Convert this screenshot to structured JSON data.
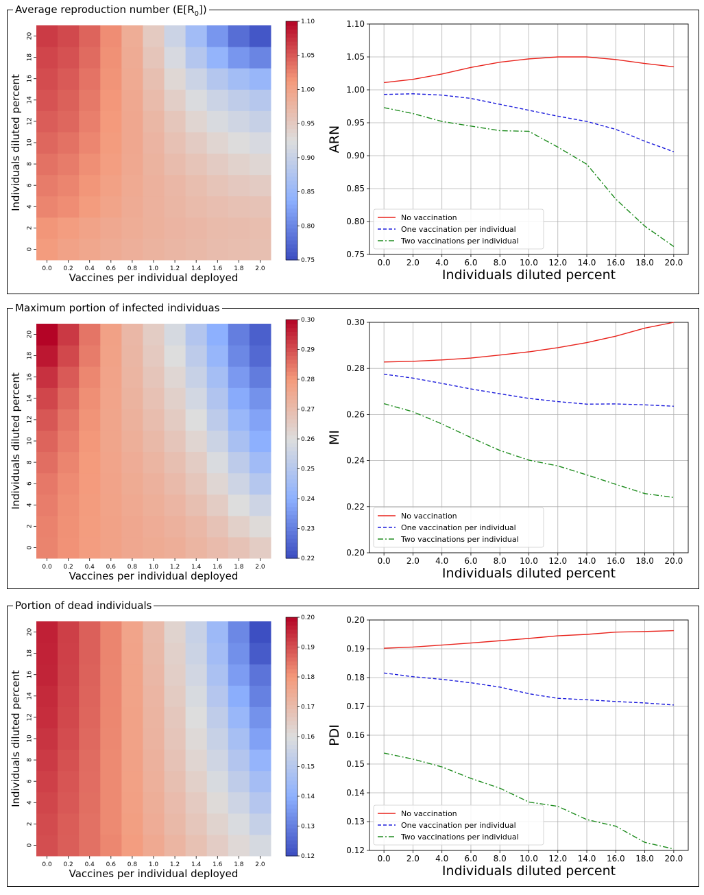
{
  "panels": [
    {
      "title": "Average reproduction number (E[R",
      "title_sub": "0",
      "title_end": "])",
      "heatmap": {
        "xlabel": "Vaccines per individual deployed",
        "ylabel": "Individuals diluted percent",
        "x_ticks": [
          "0.0",
          "0.2",
          "0.4",
          "0.6",
          "0.8",
          "1.0",
          "1.2",
          "1.4",
          "1.6",
          "1.8",
          "2.0"
        ],
        "y_ticks": [
          "0",
          "2",
          "4",
          "6",
          "8",
          "10",
          "12",
          "14",
          "16",
          "18",
          "20"
        ],
        "vmin": 0.75,
        "vmax": 1.1,
        "colorbar_ticks": [
          "0.75",
          "0.80",
          "0.85",
          "0.90",
          "0.95",
          "1.00",
          "1.05",
          "1.10"
        ],
        "colorbar_values": [
          0.75,
          0.8,
          0.85,
          0.9,
          0.95,
          1.0,
          1.05,
          1.1
        ]
      },
      "line_chart": {
        "ylabel": "ARN",
        "xlabel": "Individuals diluted percent",
        "x_ticks": [
          "0.0",
          "2.0",
          "4.0",
          "6.0",
          "8.0",
          "10.0",
          "12.0",
          "14.0",
          "16.0",
          "18.0",
          "20.0"
        ],
        "y_ticks": [
          "0.75",
          "0.80",
          "0.85",
          "0.90",
          "0.95",
          "1.00",
          "1.05",
          "1.10"
        ],
        "ylim": [
          0.75,
          1.1
        ]
      }
    },
    {
      "title": "Maximum portion of infected individuas",
      "title_sub": "",
      "title_end": "",
      "heatmap": {
        "xlabel": "Vaccines per individual deployed",
        "ylabel": "Individuals diluted percent",
        "x_ticks": [
          "0.0",
          "0.2",
          "0.4",
          "0.6",
          "0.8",
          "1.0",
          "1.2",
          "1.4",
          "1.6",
          "1.8",
          "2.0"
        ],
        "y_ticks": [
          "0",
          "2",
          "4",
          "6",
          "8",
          "10",
          "12",
          "14",
          "16",
          "18",
          "20"
        ],
        "vmin": 0.22,
        "vmax": 0.3,
        "colorbar_ticks": [
          "0.22",
          "0.23",
          "0.24",
          "0.25",
          "0.26",
          "0.27",
          "0.28",
          "0.29",
          "0.30"
        ],
        "colorbar_values": [
          0.22,
          0.23,
          0.24,
          0.25,
          0.26,
          0.27,
          0.28,
          0.29,
          0.3
        ]
      },
      "line_chart": {
        "ylabel": "MI",
        "xlabel": "Individuals diluted percent",
        "x_ticks": [
          "0.0",
          "2.0",
          "4.0",
          "6.0",
          "8.0",
          "10.0",
          "12.0",
          "14.0",
          "16.0",
          "18.0",
          "20.0"
        ],
        "y_ticks": [
          "0.20",
          "0.22",
          "0.24",
          "0.26",
          "0.28",
          "0.30"
        ],
        "ylim": [
          0.2,
          0.3
        ]
      }
    },
    {
      "title": "Portion of dead individuals",
      "title_sub": "",
      "title_end": "",
      "heatmap": {
        "xlabel": "Vaccines per individual deployed",
        "ylabel": "Individuals diluted percent",
        "x_ticks": [
          "0.0",
          "0.2",
          "0.4",
          "0.6",
          "0.8",
          "1.0",
          "1.2",
          "1.4",
          "1.6",
          "1.8",
          "2.0"
        ],
        "y_ticks": [
          "0",
          "2",
          "4",
          "6",
          "8",
          "10",
          "12",
          "14",
          "16",
          "18",
          "20"
        ],
        "vmin": 0.12,
        "vmax": 0.2,
        "colorbar_ticks": [
          "0.12",
          "0.13",
          "0.14",
          "0.15",
          "0.16",
          "0.17",
          "0.18",
          "0.19",
          "0.20"
        ],
        "colorbar_values": [
          0.12,
          0.13,
          0.14,
          0.15,
          0.16,
          0.17,
          0.18,
          0.19,
          0.2
        ]
      },
      "line_chart": {
        "ylabel": "PDI",
        "xlabel": "Individuals diluted percent",
        "x_ticks": [
          "0.0",
          "2.0",
          "4.0",
          "6.0",
          "8.0",
          "10.0",
          "12.0",
          "14.0",
          "16.0",
          "18.0",
          "20.0"
        ],
        "y_ticks": [
          "0.12",
          "0.13",
          "0.14",
          "0.15",
          "0.16",
          "0.17",
          "0.18",
          "0.19",
          "0.20"
        ],
        "ylim": [
          0.12,
          0.2
        ]
      }
    }
  ],
  "legend": {
    "entries": [
      "No vaccination",
      "One vaccination per individual",
      "Two vaccinations per individual"
    ],
    "colors": [
      "#e8221b",
      "#1a1adb",
      "#1e8c1e"
    ]
  },
  "colors": {
    "cool": "#3b4cc0",
    "mid": "#dddddd",
    "warm": "#b40426"
  },
  "chart_data": [
    {
      "type": "heatmap",
      "title": "Average reproduction number (E[R0])",
      "xlabel": "Vaccines per individual deployed",
      "ylabel": "Individuals diluted percent",
      "x": [
        0.0,
        0.2,
        0.4,
        0.6,
        0.8,
        1.0,
        1.2,
        1.4,
        1.6,
        1.8,
        2.0
      ],
      "y": [
        0,
        2,
        4,
        6,
        8,
        10,
        12,
        14,
        16,
        18,
        20
      ],
      "values": [
        [
          1.01,
          1.002,
          0.996,
          0.99,
          0.985,
          0.98,
          0.976,
          0.972,
          0.968,
          0.966,
          0.964
        ],
        [
          1.015,
          1.008,
          1.001,
          0.994,
          0.988,
          0.983,
          0.978,
          0.974,
          0.97,
          0.968,
          0.966
        ],
        [
          1.025,
          1.02,
          1.01,
          1.0,
          0.99,
          0.982,
          0.976,
          0.97,
          0.965,
          0.962,
          0.96
        ],
        [
          1.03,
          1.025,
          1.015,
          1.004,
          0.992,
          0.982,
          0.974,
          0.966,
          0.958,
          0.952,
          0.948
        ],
        [
          1.036,
          1.03,
          1.019,
          1.007,
          0.994,
          0.98,
          0.968,
          0.958,
          0.948,
          0.94,
          0.934
        ],
        [
          1.042,
          1.036,
          1.024,
          1.01,
          0.995,
          0.978,
          0.962,
          0.948,
          0.936,
          0.926,
          0.918
        ],
        [
          1.048,
          1.042,
          1.028,
          1.012,
          0.995,
          0.975,
          0.955,
          0.936,
          0.92,
          0.91,
          0.9
        ],
        [
          1.054,
          1.046,
          1.032,
          1.014,
          0.994,
          0.97,
          0.945,
          0.922,
          0.905,
          0.892,
          0.882
        ],
        [
          1.058,
          1.05,
          1.035,
          1.016,
          0.992,
          0.964,
          0.933,
          0.905,
          0.88,
          0.862,
          0.85
        ],
        [
          1.062,
          1.055,
          1.04,
          1.018,
          0.99,
          0.956,
          0.918,
          0.88,
          0.845,
          0.815,
          0.8
        ],
        [
          1.068,
          1.06,
          1.044,
          1.02,
          0.988,
          0.95,
          0.905,
          0.86,
          0.815,
          0.78,
          0.76
        ]
      ],
      "vmin": 0.75,
      "vmax": 1.1
    },
    {
      "type": "line",
      "ylabel": "ARN",
      "xlabel": "Individuals diluted percent",
      "x": [
        0,
        2,
        4,
        6,
        8,
        10,
        12,
        14,
        16,
        18,
        20
      ],
      "series": [
        {
          "name": "No vaccination",
          "values": [
            1.011,
            1.016,
            1.024,
            1.034,
            1.042,
            1.047,
            1.05,
            1.05,
            1.046,
            1.04,
            1.035
          ]
        },
        {
          "name": "One vaccination per individual",
          "values": [
            0.993,
            0.994,
            0.992,
            0.987,
            0.978,
            0.969,
            0.96,
            0.952,
            0.94,
            0.922,
            0.906
          ]
        },
        {
          "name": "Two vaccinations per individual",
          "values": [
            0.973,
            0.964,
            0.952,
            0.945,
            0.938,
            0.937,
            0.913,
            0.887,
            0.834,
            0.793,
            0.762
          ]
        }
      ],
      "ylim": [
        0.75,
        1.1
      ]
    },
    {
      "type": "heatmap",
      "title": "Maximum portion of infected individuas",
      "xlabel": "Vaccines per individual deployed",
      "ylabel": "Individuals diluted percent",
      "x": [
        0.0,
        0.2,
        0.4,
        0.6,
        0.8,
        1.0,
        1.2,
        1.4,
        1.6,
        1.8,
        2.0
      ],
      "y": [
        0,
        2,
        4,
        6,
        8,
        10,
        12,
        14,
        16,
        18,
        20
      ],
      "values": [
        [
          0.283,
          0.281,
          0.279,
          0.2775,
          0.276,
          0.275,
          0.274,
          0.272,
          0.27,
          0.268,
          0.265
        ],
        [
          0.2832,
          0.2812,
          0.2792,
          0.2775,
          0.276,
          0.2745,
          0.273,
          0.271,
          0.268,
          0.264,
          0.261
        ],
        [
          0.2838,
          0.2815,
          0.2794,
          0.2774,
          0.2756,
          0.2738,
          0.2718,
          0.269,
          0.265,
          0.26,
          0.256
        ],
        [
          0.2845,
          0.282,
          0.2796,
          0.2772,
          0.275,
          0.273,
          0.2705,
          0.267,
          0.262,
          0.256,
          0.25
        ],
        [
          0.2858,
          0.2828,
          0.2798,
          0.277,
          0.2745,
          0.272,
          0.269,
          0.265,
          0.259,
          0.252,
          0.245
        ],
        [
          0.2872,
          0.2838,
          0.2802,
          0.2768,
          0.2738,
          0.2708,
          0.2672,
          0.2625,
          0.2555,
          0.247,
          0.24
        ],
        [
          0.289,
          0.285,
          0.2808,
          0.2768,
          0.2732,
          0.2695,
          0.2655,
          0.26,
          0.252,
          0.243,
          0.2375
        ],
        [
          0.2912,
          0.2865,
          0.2815,
          0.277,
          0.2726,
          0.2683,
          0.2638,
          0.2572,
          0.249,
          0.239,
          0.234
        ],
        [
          0.294,
          0.2885,
          0.2825,
          0.2772,
          0.272,
          0.2672,
          0.262,
          0.2545,
          0.246,
          0.2355,
          0.2295
        ],
        [
          0.2975,
          0.291,
          0.284,
          0.2775,
          0.2716,
          0.266,
          0.26,
          0.252,
          0.2425,
          0.232,
          0.2258
        ],
        [
          0.3,
          0.293,
          0.285,
          0.2778,
          0.2712,
          0.265,
          0.258,
          0.2495,
          0.24,
          0.23,
          0.224
        ]
      ],
      "vmin": 0.22,
      "vmax": 0.3
    },
    {
      "type": "line",
      "ylabel": "MI",
      "xlabel": "Individuals diluted percent",
      "x": [
        0,
        2,
        4,
        6,
        8,
        10,
        12,
        14,
        16,
        18,
        20
      ],
      "series": [
        {
          "name": "No vaccination",
          "values": [
            0.2828,
            0.2831,
            0.2837,
            0.2845,
            0.2858,
            0.2872,
            0.289,
            0.2912,
            0.294,
            0.2975,
            0.3
          ]
        },
        {
          "name": "One vaccination per individual",
          "values": [
            0.2775,
            0.2758,
            0.2735,
            0.2711,
            0.269,
            0.267,
            0.2656,
            0.2645,
            0.2646,
            0.2642,
            0.2636
          ]
        },
        {
          "name": "Two vaccinations per individual",
          "values": [
            0.2647,
            0.2612,
            0.2559,
            0.25,
            0.2444,
            0.2402,
            0.2377,
            0.2338,
            0.2297,
            0.2257,
            0.224
          ]
        }
      ],
      "ylim": [
        0.2,
        0.3
      ]
    },
    {
      "type": "heatmap",
      "title": "Portion of dead individuals",
      "xlabel": "Vaccines per individual deployed",
      "ylabel": "Individuals diluted percent",
      "x": [
        0.0,
        0.2,
        0.4,
        0.6,
        0.8,
        1.0,
        1.2,
        1.4,
        1.6,
        1.8,
        2.0
      ],
      "y": [
        0,
        2,
        4,
        6,
        8,
        10,
        12,
        14,
        16,
        18,
        20
      ],
      "values": [
        [
          0.1902,
          0.188,
          0.1855,
          0.1825,
          0.179,
          0.1755,
          0.172,
          0.1685,
          0.165,
          0.1615,
          0.158
        ],
        [
          0.1905,
          0.1882,
          0.1855,
          0.1822,
          0.1785,
          0.1745,
          0.1708,
          0.167,
          0.163,
          0.159,
          0.154
        ],
        [
          0.1912,
          0.1888,
          0.1858,
          0.1822,
          0.1782,
          0.174,
          0.17,
          0.1658,
          0.161,
          0.156,
          0.15
        ],
        [
          0.192,
          0.1892,
          0.186,
          0.1822,
          0.178,
          0.1735,
          0.169,
          0.164,
          0.1585,
          0.1525,
          0.146
        ],
        [
          0.1928,
          0.1898,
          0.1862,
          0.1822,
          0.1778,
          0.173,
          0.168,
          0.1625,
          0.1565,
          0.1495,
          0.142
        ],
        [
          0.1936,
          0.1904,
          0.1866,
          0.1824,
          0.1776,
          0.1725,
          0.1672,
          0.1612,
          0.1545,
          0.1465,
          0.137
        ],
        [
          0.1945,
          0.191,
          0.187,
          0.1825,
          0.1775,
          0.1722,
          0.1665,
          0.16,
          0.1525,
          0.143,
          0.134
        ],
        [
          0.195,
          0.1914,
          0.1872,
          0.1826,
          0.1774,
          0.1718,
          0.1655,
          0.1585,
          0.15,
          0.1395,
          0.1305
        ],
        [
          0.1958,
          0.1918,
          0.1875,
          0.1827,
          0.1773,
          0.1712,
          0.1645,
          0.157,
          0.1475,
          0.136,
          0.128
        ],
        [
          0.196,
          0.192,
          0.1877,
          0.1828,
          0.1772,
          0.1708,
          0.1638,
          0.1555,
          0.1455,
          0.1335,
          0.123
        ],
        [
          0.1963,
          0.1922,
          0.1878,
          0.1828,
          0.177,
          0.1705,
          0.163,
          0.1545,
          0.144,
          0.132,
          0.1205
        ]
      ],
      "vmin": 0.12,
      "vmax": 0.2
    },
    {
      "type": "line",
      "ylabel": "PDI",
      "xlabel": "Individuals diluted percent",
      "x": [
        0,
        2,
        4,
        6,
        8,
        10,
        12,
        14,
        16,
        18,
        20
      ],
      "series": [
        {
          "name": "No vaccination",
          "values": [
            0.1902,
            0.1906,
            0.1913,
            0.192,
            0.1928,
            0.1936,
            0.1945,
            0.195,
            0.1958,
            0.196,
            0.1963
          ]
        },
        {
          "name": "One vaccination per individual",
          "values": [
            0.1816,
            0.1803,
            0.1794,
            0.1782,
            0.1767,
            0.1744,
            0.1728,
            0.1723,
            0.1717,
            0.1712,
            0.1705
          ]
        },
        {
          "name": "Two vaccinations per individual",
          "values": [
            0.1538,
            0.1517,
            0.149,
            0.145,
            0.1416,
            0.1368,
            0.1353,
            0.1307,
            0.1284,
            0.1228,
            0.1205
          ]
        }
      ],
      "ylim": [
        0.12,
        0.2
      ]
    }
  ]
}
